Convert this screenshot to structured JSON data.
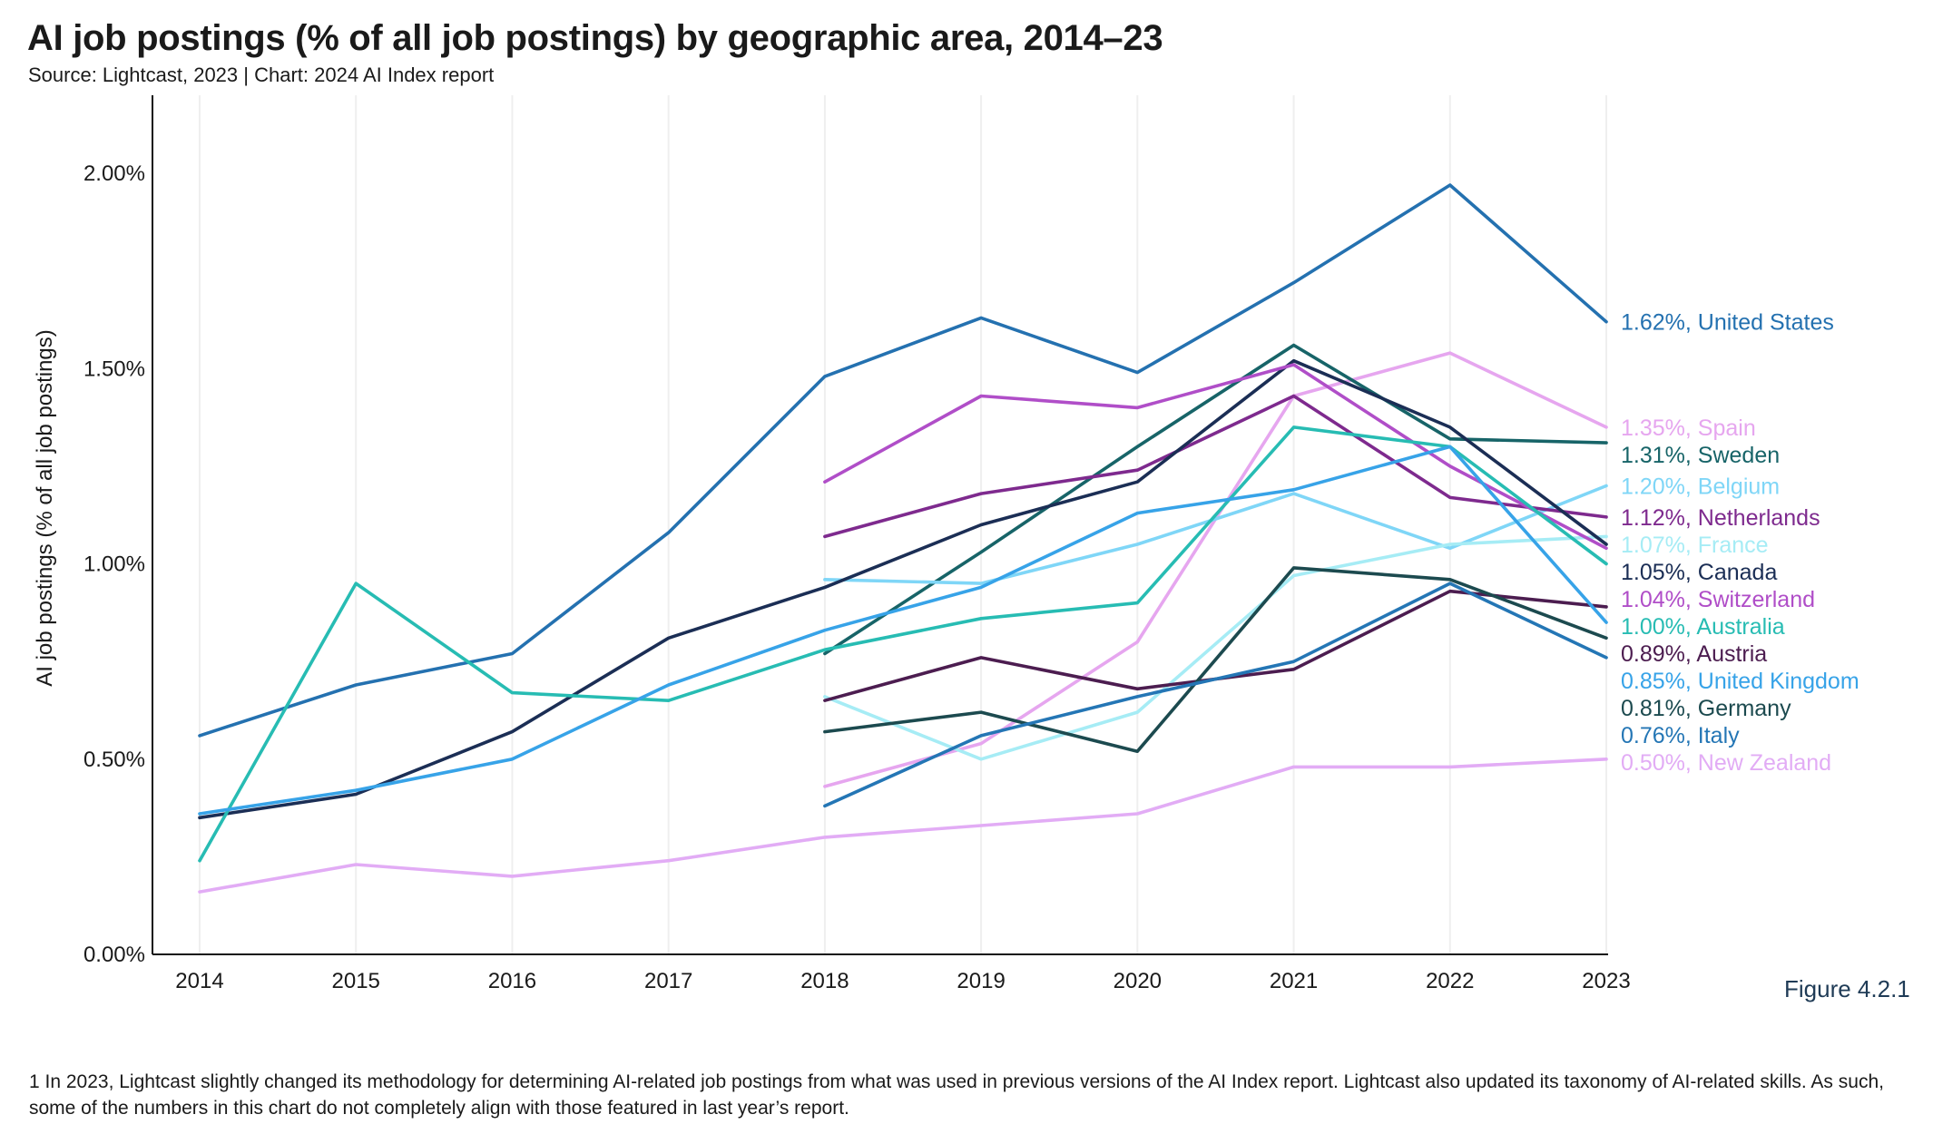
{
  "title": "AI job postings (% of all job postings) by geographic area, 2014–23",
  "subtitle": "Source: Lightcast, 2023 | Chart: 2024 AI Index report",
  "figure_label": "Figure 4.2.1",
  "footnote": "1 In 2023, Lightcast slightly changed its methodology for determining AI-related job postings from what was used in previous versions of the AI Index report. Lightcast also updated its taxonomy of AI-related skills. As such, some of the numbers in this chart do not completely align with those featured in last year’s report.",
  "chart_data": {
    "type": "line",
    "title": "AI job postings (% of all job postings) by geographic area, 2014–23",
    "xlabel": "",
    "ylabel": "AI job postings (% of all job postings)",
    "x": [
      2014,
      2015,
      2016,
      2017,
      2018,
      2019,
      2020,
      2021,
      2022,
      2023
    ],
    "ylim": [
      0,
      2.2
    ],
    "yticks": [
      0,
      0.5,
      1.0,
      1.5,
      2.0
    ],
    "ytick_labels": [
      "0.00%",
      "0.50%",
      "1.00%",
      "1.50%",
      "2.00%"
    ],
    "grid": "vertical",
    "legend": "end-of-line labels",
    "series": [
      {
        "name": "United States",
        "end_label": "1.62%, United States",
        "color": "#2471b0",
        "values": [
          0.56,
          0.69,
          0.77,
          1.08,
          1.48,
          1.63,
          1.49,
          1.72,
          1.97,
          1.62
        ]
      },
      {
        "name": "Spain",
        "end_label": "1.35%, Spain",
        "color": "#e6a6ef",
        "values": [
          null,
          null,
          null,
          null,
          0.43,
          0.54,
          0.8,
          1.43,
          1.54,
          1.35
        ]
      },
      {
        "name": "Sweden",
        "end_label": "1.31%, Sweden",
        "color": "#176468",
        "values": [
          null,
          null,
          null,
          null,
          0.77,
          1.03,
          1.3,
          1.56,
          1.32,
          1.31
        ]
      },
      {
        "name": "Belgium",
        "end_label": "1.20%, Belgium",
        "color": "#7fd6f7",
        "values": [
          null,
          null,
          null,
          null,
          0.96,
          0.95,
          1.05,
          1.18,
          1.04,
          1.2
        ]
      },
      {
        "name": "Netherlands",
        "end_label": "1.12%, Netherlands",
        "color": "#7e2a8e",
        "values": [
          null,
          null,
          null,
          null,
          1.07,
          1.18,
          1.24,
          1.43,
          1.17,
          1.12
        ]
      },
      {
        "name": "France",
        "end_label": "1.07%, France",
        "color": "#a6ecf5",
        "values": [
          null,
          null,
          null,
          null,
          0.66,
          0.5,
          0.62,
          0.97,
          1.05,
          1.07
        ]
      },
      {
        "name": "Canada",
        "end_label": "1.05%, Canada",
        "color": "#1b2e55",
        "values": [
          0.35,
          0.41,
          0.57,
          0.81,
          0.94,
          1.1,
          1.21,
          1.52,
          1.35,
          1.05
        ]
      },
      {
        "name": "Switzerland",
        "end_label": "1.04%, Switzerland",
        "color": "#b04ec8",
        "values": [
          null,
          null,
          null,
          null,
          1.21,
          1.43,
          1.4,
          1.51,
          1.25,
          1.04
        ]
      },
      {
        "name": "Australia",
        "end_label": "1.00%, Australia",
        "color": "#27bcb3",
        "values": [
          0.24,
          0.95,
          0.67,
          0.65,
          0.78,
          0.86,
          0.9,
          1.35,
          1.3,
          1.0
        ]
      },
      {
        "name": "Austria",
        "end_label": "0.89%, Austria",
        "color": "#4c1d50",
        "values": [
          null,
          null,
          null,
          null,
          0.65,
          0.76,
          0.68,
          0.73,
          0.93,
          0.89
        ]
      },
      {
        "name": "United Kingdom",
        "end_label": "0.85%, United Kingdom",
        "color": "#37a3e8",
        "values": [
          0.36,
          0.42,
          0.5,
          0.69,
          0.83,
          0.94,
          1.13,
          1.19,
          1.3,
          0.85
        ]
      },
      {
        "name": "Germany",
        "end_label": "0.81%, Germany",
        "color": "#1c4a4f",
        "values": [
          null,
          null,
          null,
          null,
          0.57,
          0.62,
          0.52,
          0.99,
          0.96,
          0.81
        ]
      },
      {
        "name": "Italy",
        "end_label": "0.76%, Italy",
        "color": "#2476b5",
        "values": [
          null,
          null,
          null,
          null,
          0.38,
          0.56,
          0.66,
          0.75,
          0.95,
          0.76
        ]
      },
      {
        "name": "New Zealand",
        "end_label": "0.50%, New Zealand",
        "color": "#e2acf5",
        "values": [
          0.16,
          0.23,
          0.2,
          0.24,
          0.3,
          0.33,
          0.36,
          0.48,
          0.48,
          0.5
        ]
      }
    ]
  }
}
